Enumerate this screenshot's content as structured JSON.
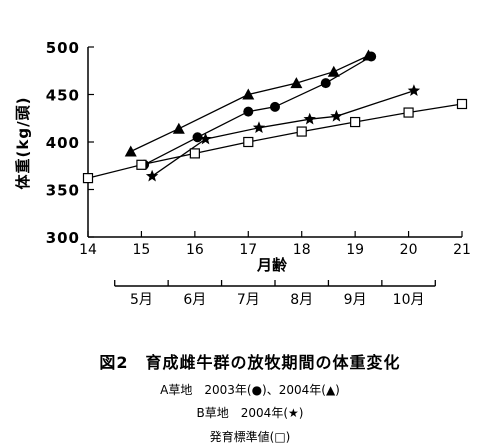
{
  "chart_data": {
    "type": "line",
    "ylabel": "体重(kg/頭)",
    "xlabel": "月齢",
    "xlim": [
      14,
      21
    ],
    "ylim": [
      300,
      500
    ],
    "x_ticks": [
      "14",
      "15",
      "16",
      "17",
      "18",
      "19",
      "20",
      "21"
    ],
    "y_ticks": [
      "300",
      "350",
      "400",
      "450",
      "500"
    ],
    "grid": false,
    "series": [
      {
        "name": "A草地 2003年",
        "marker": "●",
        "points": [
          [
            15.05,
            376
          ],
          [
            16.05,
            405
          ],
          [
            17.0,
            432
          ],
          [
            17.5,
            437
          ],
          [
            18.45,
            462
          ],
          [
            19.3,
            490
          ]
        ]
      },
      {
        "name": "A草地 2004年",
        "marker": "▲",
        "points": [
          [
            14.8,
            390
          ],
          [
            15.7,
            414
          ],
          [
            17.0,
            450
          ],
          [
            17.9,
            462
          ],
          [
            18.6,
            474
          ],
          [
            19.25,
            491
          ]
        ]
      },
      {
        "name": "B草地 2004年",
        "marker": "★",
        "points": [
          [
            15.2,
            364
          ],
          [
            16.2,
            403
          ],
          [
            17.2,
            415
          ],
          [
            18.15,
            424
          ],
          [
            18.65,
            427
          ],
          [
            20.1,
            454
          ]
        ]
      },
      {
        "name": "発育標準値",
        "marker": "□",
        "points": [
          [
            14.0,
            362
          ],
          [
            15.0,
            376
          ],
          [
            16.0,
            388
          ],
          [
            17.0,
            400
          ],
          [
            18.0,
            411
          ],
          [
            19.0,
            421
          ],
          [
            20.0,
            431
          ],
          [
            21.0,
            440
          ]
        ]
      }
    ],
    "months": {
      "labels": [
        "5月",
        "6月",
        "7月",
        "8月",
        "9月",
        "10月"
      ],
      "boundaries": [
        14.5,
        15.5,
        16.5,
        17.5,
        18.5,
        19.5,
        20.5
      ]
    }
  },
  "caption": {
    "title": "図2　育成雌牛群の放牧期間の体重変化",
    "legend_a": "A草地　2003年(●)、2004年(▲)",
    "legend_b": "B草地　2004年(★)",
    "legend_c": "発育標準値(□)"
  }
}
